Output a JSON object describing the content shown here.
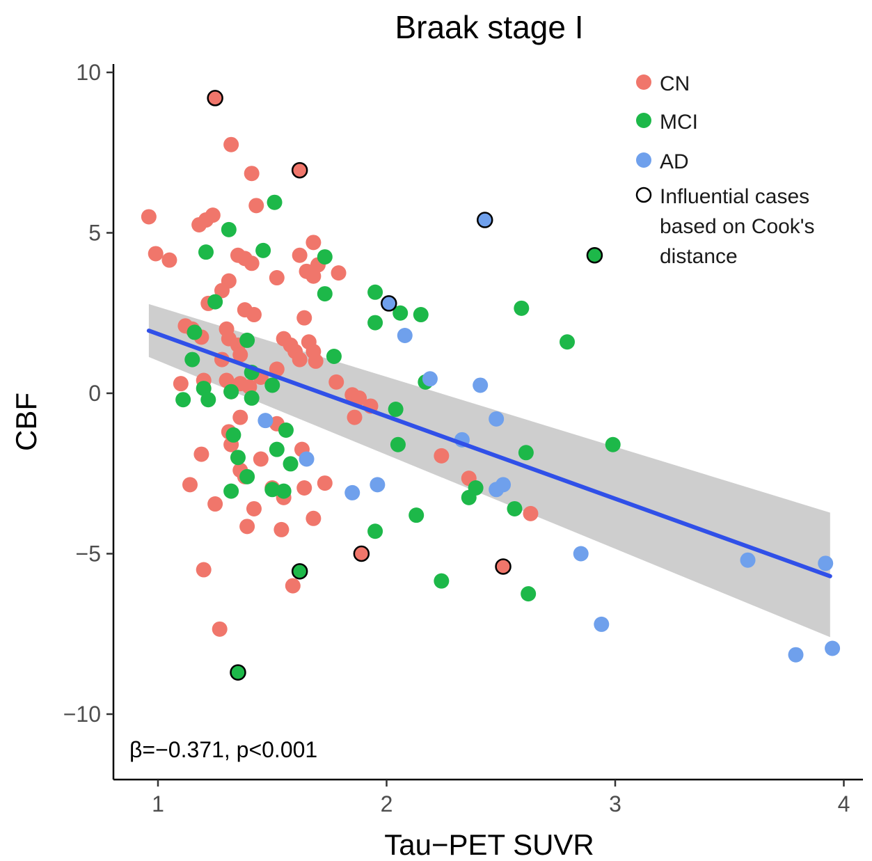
{
  "chart_data": {
    "type": "scatter",
    "title": "Braak stage I",
    "xlabel": "Tau−PET SUVR",
    "ylabel": "CBF",
    "xlim": [
      0.8,
      4.1
    ],
    "ylim": [
      -12,
      10.4
    ],
    "xticks": [
      1,
      2,
      3,
      4
    ],
    "xtick_labels": [
      "1",
      "2",
      "3",
      "4"
    ],
    "yticks": [
      10,
      5,
      0,
      -5,
      -10
    ],
    "ytick_labels": [
      "10",
      "5",
      "0",
      "−5",
      "−10"
    ],
    "grid": false,
    "legend_position": "top-right",
    "annotation": "β=−0.371, p<0.001",
    "colors": {
      "CN": "#f0766b",
      "MCI": "#1db849",
      "AD": "#6fa0ec",
      "fit_line": "#3050e8",
      "ci_band": "#bdbdbd"
    },
    "legend": [
      {
        "key": "CN",
        "label": "CN",
        "color": "#f0766b"
      },
      {
        "key": "MCI",
        "label": "MCI",
        "color": "#1db849"
      },
      {
        "key": "AD",
        "label": "AD",
        "color": "#6fa0ec"
      },
      {
        "key": "influential",
        "label_lines": [
          "Influential cases",
          "based on Cook's",
          "distance"
        ]
      }
    ],
    "fit": {
      "x": [
        0.96,
        3.94
      ],
      "y": [
        1.95,
        -5.7
      ]
    },
    "ci_band": {
      "x": [
        0.96,
        3.94
      ],
      "upper": [
        2.78,
        -3.72
      ],
      "lower": [
        1.13,
        -7.6
      ]
    },
    "series": [
      {
        "name": "CN",
        "points": [
          [
            1.25,
            9.2
          ],
          [
            1.32,
            7.75
          ],
          [
            1.62,
            6.95
          ],
          [
            1.41,
            6.85
          ],
          [
            1.43,
            5.85
          ],
          [
            0.96,
            5.5
          ],
          [
            1.18,
            5.25
          ],
          [
            1.24,
            5.55
          ],
          [
            1.21,
            5.4
          ],
          [
            0.99,
            4.35
          ],
          [
            1.05,
            4.15
          ],
          [
            1.35,
            4.3
          ],
          [
            1.38,
            4.2
          ],
          [
            1.41,
            4.05
          ],
          [
            1.62,
            4.3
          ],
          [
            1.68,
            4.7
          ],
          [
            1.7,
            4.0
          ],
          [
            1.65,
            3.8
          ],
          [
            1.68,
            3.65
          ],
          [
            1.52,
            3.6
          ],
          [
            1.79,
            3.75
          ],
          [
            1.31,
            3.5
          ],
          [
            1.28,
            3.2
          ],
          [
            1.22,
            2.8
          ],
          [
            1.38,
            2.6
          ],
          [
            1.42,
            2.45
          ],
          [
            1.64,
            2.35
          ],
          [
            1.12,
            2.1
          ],
          [
            1.15,
            2.0
          ],
          [
            1.19,
            1.75
          ],
          [
            1.3,
            2.0
          ],
          [
            1.31,
            1.7
          ],
          [
            1.35,
            1.5
          ],
          [
            1.28,
            1.05
          ],
          [
            1.36,
            1.2
          ],
          [
            1.55,
            1.7
          ],
          [
            1.58,
            1.5
          ],
          [
            1.6,
            1.3
          ],
          [
            1.62,
            1.05
          ],
          [
            1.66,
            1.6
          ],
          [
            1.68,
            1.3
          ],
          [
            1.69,
            1.0
          ],
          [
            1.52,
            0.75
          ],
          [
            1.45,
            0.5
          ],
          [
            1.4,
            0.2
          ],
          [
            1.36,
            0.3
          ],
          [
            1.32,
            0.05
          ],
          [
            1.3,
            0.4
          ],
          [
            1.1,
            0.3
          ],
          [
            1.2,
            0.4
          ],
          [
            1.78,
            0.35
          ],
          [
            1.85,
            -0.05
          ],
          [
            1.88,
            -0.15
          ],
          [
            1.93,
            -0.4
          ],
          [
            1.86,
            -0.75
          ],
          [
            1.36,
            -0.75
          ],
          [
            1.52,
            -0.95
          ],
          [
            1.31,
            -1.2
          ],
          [
            1.32,
            -1.6
          ],
          [
            1.19,
            -1.9
          ],
          [
            1.45,
            -2.05
          ],
          [
            1.63,
            -1.75
          ],
          [
            1.36,
            -2.4
          ],
          [
            1.38,
            -2.6
          ],
          [
            1.14,
            -2.85
          ],
          [
            1.64,
            -2.95
          ],
          [
            1.73,
            -2.8
          ],
          [
            1.5,
            -2.95
          ],
          [
            1.55,
            -3.25
          ],
          [
            1.25,
            -3.45
          ],
          [
            1.42,
            -3.6
          ],
          [
            1.68,
            -3.9
          ],
          [
            1.39,
            -4.15
          ],
          [
            1.54,
            -4.25
          ],
          [
            1.89,
            -5.0
          ],
          [
            1.2,
            -5.5
          ],
          [
            1.59,
            -6.0
          ],
          [
            1.27,
            -7.35
          ],
          [
            2.24,
            -1.95
          ],
          [
            2.36,
            -2.65
          ],
          [
            2.51,
            -5.4
          ],
          [
            2.63,
            -3.75
          ]
        ]
      },
      {
        "name": "MCI",
        "points": [
          [
            1.51,
            5.95
          ],
          [
            1.31,
            5.1
          ],
          [
            1.21,
            4.4
          ],
          [
            1.46,
            4.45
          ],
          [
            1.73,
            4.25
          ],
          [
            1.25,
            2.85
          ],
          [
            1.73,
            3.1
          ],
          [
            1.95,
            3.15
          ],
          [
            1.95,
            2.2
          ],
          [
            2.06,
            2.5
          ],
          [
            2.15,
            2.45
          ],
          [
            2.59,
            2.65
          ],
          [
            2.79,
            1.6
          ],
          [
            2.91,
            4.3
          ],
          [
            1.16,
            1.9
          ],
          [
            1.39,
            1.65
          ],
          [
            1.77,
            1.15
          ],
          [
            1.15,
            1.05
          ],
          [
            1.41,
            0.65
          ],
          [
            1.5,
            0.25
          ],
          [
            1.2,
            0.15
          ],
          [
            1.32,
            0.05
          ],
          [
            1.41,
            -0.15
          ],
          [
            1.22,
            -0.2
          ],
          [
            1.11,
            -0.2
          ],
          [
            2.04,
            -0.5
          ],
          [
            2.05,
            -1.6
          ],
          [
            2.17,
            0.35
          ],
          [
            1.33,
            -1.3
          ],
          [
            1.35,
            -2.0
          ],
          [
            1.39,
            -2.6
          ],
          [
            1.52,
            -1.75
          ],
          [
            1.56,
            -1.15
          ],
          [
            1.58,
            -2.2
          ],
          [
            1.55,
            -3.05
          ],
          [
            1.5,
            -3.0
          ],
          [
            1.32,
            -3.05
          ],
          [
            2.13,
            -3.8
          ],
          [
            2.36,
            -3.25
          ],
          [
            2.39,
            -2.95
          ],
          [
            2.56,
            -3.6
          ],
          [
            2.61,
            -1.85
          ],
          [
            2.99,
            -1.6
          ],
          [
            1.62,
            -5.55
          ],
          [
            1.95,
            -4.3
          ],
          [
            2.24,
            -5.85
          ],
          [
            2.62,
            -6.25
          ],
          [
            1.35,
            -8.7
          ]
        ]
      },
      {
        "name": "AD",
        "points": [
          [
            2.43,
            5.4
          ],
          [
            2.01,
            2.8
          ],
          [
            2.08,
            1.8
          ],
          [
            2.19,
            0.45
          ],
          [
            2.41,
            0.25
          ],
          [
            2.48,
            -0.8
          ],
          [
            2.33,
            -1.45
          ],
          [
            1.47,
            -0.85
          ],
          [
            1.65,
            -2.05
          ],
          [
            1.85,
            -3.1
          ],
          [
            1.96,
            -2.85
          ],
          [
            2.48,
            -3.0
          ],
          [
            2.51,
            -2.85
          ],
          [
            2.85,
            -5.0
          ],
          [
            2.94,
            -7.2
          ],
          [
            3.58,
            -5.2
          ],
          [
            3.92,
            -5.3
          ],
          [
            3.79,
            -8.15
          ],
          [
            3.95,
            -7.95
          ]
        ]
      }
    ],
    "influential_cases": [
      {
        "group": "CN",
        "x": 1.25,
        "y": 9.2
      },
      {
        "group": "CN",
        "x": 1.62,
        "y": 6.95
      },
      {
        "group": "AD",
        "x": 2.43,
        "y": 5.4
      },
      {
        "group": "MCI",
        "x": 2.91,
        "y": 4.3
      },
      {
        "group": "AD",
        "x": 2.01,
        "y": 2.8
      },
      {
        "group": "CN",
        "x": 1.89,
        "y": -5.0
      },
      {
        "group": "MCI",
        "x": 1.62,
        "y": -5.55
      },
      {
        "group": "CN",
        "x": 2.51,
        "y": -5.4
      },
      {
        "group": "MCI",
        "x": 1.35,
        "y": -8.7
      }
    ]
  }
}
